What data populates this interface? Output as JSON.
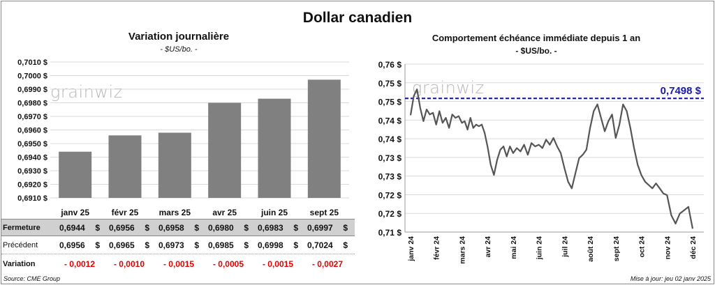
{
  "header": {
    "title": "Dollar canadien"
  },
  "watermark": "grainwiz",
  "chart_data": [
    {
      "type": "bar",
      "title": "Variation  journalière",
      "subtitle": "- $US/bo. -",
      "categories": [
        "janv 25",
        "févr 25",
        "mars 25",
        "avr 25",
        "juin 25",
        "sept 25"
      ],
      "values": [
        0.6944,
        0.6956,
        0.6958,
        0.698,
        0.6983,
        0.6997
      ],
      "ylim": [
        0.691,
        0.701
      ],
      "yticks": [
        "0,7010 $",
        "0,7000 $",
        "0,6990 $",
        "0,6980 $",
        "0,6970 $",
        "0,6960 $",
        "0,6950 $",
        "0,6940 $",
        "0,6930 $",
        "0,6920 $",
        "0,6910 $"
      ],
      "bar_color": "#808080",
      "grid": true
    },
    {
      "type": "line",
      "title": "Comportement échéance immédiate depuis 1 an",
      "subtitle": "- $US/bo. -",
      "ylim": [
        0.71,
        0.76
      ],
      "yticks": [
        "0,76 $",
        "0,75 $",
        "0,75 $",
        "0,74 $",
        "0,74 $",
        "0,73 $",
        "0,73 $",
        "0,72 $",
        "0,72 $",
        "0,71 $"
      ],
      "xticks": [
        "janv 24",
        "févr 24",
        "mars 24",
        "avr 24",
        "mai 24",
        "juin 24",
        "juil 24",
        "août 24",
        "sept 24",
        "oct 24",
        "nov 24",
        "déc 24"
      ],
      "reference_line": {
        "value": 0.7498,
        "label": "0,7498 $",
        "color": "#1a1aaa",
        "style": "dashed"
      },
      "series_color": "#555555",
      "x": [
        "janv 24",
        "janv 24",
        "janv 24",
        "janv 24",
        "janv 24",
        "janv 24",
        "janv 24",
        "janv 24",
        "févr 24",
        "févr 24",
        "févr 24",
        "févr 24",
        "févr 24",
        "févr 24",
        "févr 24",
        "févr 24",
        "mars 24",
        "mars 24",
        "mars 24",
        "mars 24",
        "mars 24",
        "mars 24",
        "mars 24",
        "mars 24",
        "mars 24",
        "avr 24",
        "avr 24",
        "avr 24",
        "avr 24",
        "avr 24",
        "avr 24",
        "avr 24",
        "avr 24",
        "mai 24",
        "mai 24",
        "mai 24",
        "mai 24",
        "mai 24",
        "mai 24",
        "mai 24",
        "juin 24",
        "juin 24",
        "juin 24",
        "juin 24",
        "juin 24",
        "juin 24",
        "juin 24",
        "juil 24",
        "juil 24",
        "juil 24",
        "juil 24",
        "juil 24",
        "juil 24",
        "juil 24",
        "août 24",
        "août 24",
        "août 24",
        "août 24",
        "août 24",
        "août 24",
        "août 24",
        "sept 24",
        "sept 24",
        "sept 24",
        "sept 24",
        "sept 24",
        "sept 24",
        "sept 24",
        "oct 24",
        "oct 24",
        "oct 24",
        "oct 24",
        "oct 24",
        "oct 24",
        "oct 24",
        "nov 24",
        "nov 24",
        "nov 24",
        "nov 24",
        "nov 24",
        "nov 24",
        "déc 24"
      ],
      "y": [
        0.7448,
        0.7505,
        0.7525,
        0.747,
        0.743,
        0.7465,
        0.745,
        0.7455,
        0.742,
        0.746,
        0.7425,
        0.744,
        0.741,
        0.745,
        0.744,
        0.7445,
        0.7425,
        0.743,
        0.7405,
        0.744,
        0.741,
        0.742,
        0.7415,
        0.742,
        0.7395,
        0.7355,
        0.73,
        0.727,
        0.7315,
        0.7345,
        0.7355,
        0.7325,
        0.7355,
        0.7335,
        0.735,
        0.734,
        0.736,
        0.733,
        0.7365,
        0.7355,
        0.736,
        0.735,
        0.7375,
        0.736,
        0.738,
        0.7355,
        0.7335,
        0.729,
        0.725,
        0.723,
        0.7275,
        0.732,
        0.733,
        0.7345,
        0.741,
        0.746,
        0.748,
        0.744,
        0.74,
        0.743,
        0.745,
        0.738,
        0.742,
        0.748,
        0.746,
        0.741,
        0.735,
        0.73,
        0.727,
        0.725,
        0.724,
        0.723,
        0.7245,
        0.723,
        0.7215,
        0.721,
        0.715,
        0.7125,
        0.7155,
        0.7165,
        0.7175,
        0.711
      ]
    }
  ],
  "table": {
    "columns": [
      "janv 25",
      "févr 25",
      "mars 25",
      "avr 25",
      "juin 25",
      "sept 25"
    ],
    "currency": "$",
    "rows": [
      {
        "label": "Fermeture",
        "values": [
          "0,6944",
          "0,6956",
          "0,6958",
          "0,6980",
          "0,6983",
          "0,6997"
        ]
      },
      {
        "label": "Précédent",
        "values": [
          "0,6956",
          "0,6965",
          "0,6973",
          "0,6985",
          "0,6998",
          "0,7024"
        ]
      },
      {
        "label": "Variation",
        "values": [
          "- 0,0012",
          "- 0,0010",
          "- 0,0015",
          "- 0,0005",
          "- 0,0015",
          "- 0,0027"
        ]
      }
    ]
  },
  "footer": {
    "source": "Source: CME Group",
    "updated": "Mise à jour: jeu 02 janv 2025"
  }
}
